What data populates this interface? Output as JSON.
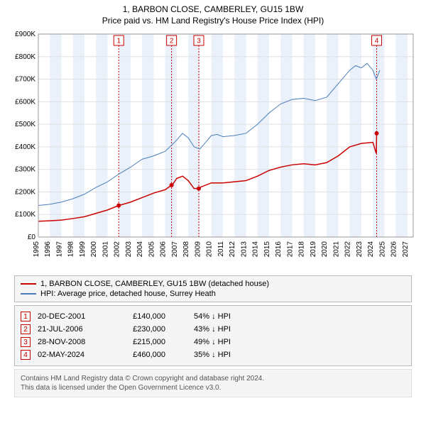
{
  "title_line1": "1, BARBON CLOSE, CAMBERLEY, GU15 1BW",
  "title_line2": "Price paid vs. HM Land Registry's House Price Index (HPI)",
  "chart": {
    "type": "line",
    "background_color": "#ffffff",
    "band_color": "#eaf1fa",
    "grid_color": "#e0e0e0",
    "xlim": [
      1995,
      2027.5
    ],
    "ylim": [
      0,
      900000
    ],
    "ytick_step": 100000,
    "yticks": [
      "£0",
      "£100K",
      "£200K",
      "£300K",
      "£400K",
      "£500K",
      "£600K",
      "£700K",
      "£800K",
      "£900K"
    ],
    "xticks": [
      1995,
      1996,
      1997,
      1998,
      1999,
      2000,
      2001,
      2002,
      2003,
      2004,
      2005,
      2006,
      2007,
      2008,
      2009,
      2010,
      2011,
      2012,
      2013,
      2014,
      2015,
      2016,
      2017,
      2018,
      2019,
      2020,
      2021,
      2022,
      2023,
      2024,
      2025,
      2026,
      2027
    ],
    "series": [
      {
        "name": "1, BARBON CLOSE, CAMBERLEY, GU15 1BW (detached house)",
        "color": "#cc0000",
        "line_width": 1.5,
        "points": [
          [
            1995,
            70000
          ],
          [
            1996,
            72000
          ],
          [
            1997,
            75000
          ],
          [
            1998,
            82000
          ],
          [
            1999,
            90000
          ],
          [
            2000,
            105000
          ],
          [
            2001,
            120000
          ],
          [
            2001.97,
            140000
          ],
          [
            2002,
            140000
          ],
          [
            2003,
            155000
          ],
          [
            2004,
            175000
          ],
          [
            2005,
            195000
          ],
          [
            2006,
            210000
          ],
          [
            2006.55,
            230000
          ],
          [
            2006.6,
            230000
          ],
          [
            2007,
            260000
          ],
          [
            2007.5,
            270000
          ],
          [
            2008,
            250000
          ],
          [
            2008.5,
            215000
          ],
          [
            2008.91,
            215000
          ],
          [
            2009,
            220000
          ],
          [
            2010,
            240000
          ],
          [
            2011,
            240000
          ],
          [
            2012,
            245000
          ],
          [
            2013,
            250000
          ],
          [
            2014,
            270000
          ],
          [
            2015,
            295000
          ],
          [
            2016,
            310000
          ],
          [
            2017,
            320000
          ],
          [
            2018,
            325000
          ],
          [
            2019,
            320000
          ],
          [
            2020,
            330000
          ],
          [
            2021,
            360000
          ],
          [
            2022,
            400000
          ],
          [
            2023,
            415000
          ],
          [
            2024,
            420000
          ],
          [
            2024.3,
            370000
          ],
          [
            2024.33,
            460000
          ]
        ],
        "transaction_dots": [
          [
            2001.97,
            140000
          ],
          [
            2006.55,
            230000
          ],
          [
            2008.91,
            215000
          ],
          [
            2024.33,
            460000
          ]
        ]
      },
      {
        "name": "HPI: Average price, detached house, Surrey Heath",
        "color": "#4a7ebb",
        "line_width": 1,
        "points": [
          [
            1995,
            140000
          ],
          [
            1996,
            145000
          ],
          [
            1997,
            155000
          ],
          [
            1998,
            170000
          ],
          [
            1999,
            190000
          ],
          [
            2000,
            220000
          ],
          [
            2001,
            245000
          ],
          [
            2002,
            280000
          ],
          [
            2003,
            310000
          ],
          [
            2004,
            345000
          ],
          [
            2005,
            360000
          ],
          [
            2006,
            380000
          ],
          [
            2007,
            430000
          ],
          [
            2007.5,
            460000
          ],
          [
            2008,
            440000
          ],
          [
            2008.5,
            400000
          ],
          [
            2009,
            390000
          ],
          [
            2009.5,
            420000
          ],
          [
            2010,
            450000
          ],
          [
            2010.5,
            455000
          ],
          [
            2011,
            445000
          ],
          [
            2012,
            450000
          ],
          [
            2013,
            460000
          ],
          [
            2014,
            500000
          ],
          [
            2015,
            550000
          ],
          [
            2016,
            590000
          ],
          [
            2017,
            610000
          ],
          [
            2018,
            615000
          ],
          [
            2019,
            605000
          ],
          [
            2020,
            620000
          ],
          [
            2021,
            680000
          ],
          [
            2022,
            740000
          ],
          [
            2022.5,
            760000
          ],
          [
            2023,
            750000
          ],
          [
            2023.5,
            770000
          ],
          [
            2024,
            740000
          ],
          [
            2024.3,
            700000
          ],
          [
            2024.6,
            740000
          ]
        ]
      }
    ],
    "markers": [
      {
        "n": "1",
        "x": 2001.97
      },
      {
        "n": "2",
        "x": 2006.55
      },
      {
        "n": "3",
        "x": 2008.91
      },
      {
        "n": "4",
        "x": 2024.33
      }
    ]
  },
  "legend": [
    {
      "color": "#cc0000",
      "label": "1, BARBON CLOSE, CAMBERLEY, GU15 1BW (detached house)"
    },
    {
      "color": "#4a7ebb",
      "label": "HPI: Average price, detached house, Surrey Heath"
    }
  ],
  "transactions_header_arrow": "↓ HPI",
  "transactions": [
    {
      "n": "1",
      "date": "20-DEC-2001",
      "price": "£140,000",
      "pct": "54% ↓ HPI"
    },
    {
      "n": "2",
      "date": "21-JUL-2006",
      "price": "£230,000",
      "pct": "43% ↓ HPI"
    },
    {
      "n": "3",
      "date": "28-NOV-2008",
      "price": "£215,000",
      "pct": "49% ↓ HPI"
    },
    {
      "n": "4",
      "date": "02-MAY-2024",
      "price": "£460,000",
      "pct": "35% ↓ HPI"
    }
  ],
  "footer_line1": "Contains HM Land Registry data © Crown copyright and database right 2024.",
  "footer_line2": "This data is licensed under the Open Government Licence v3.0."
}
